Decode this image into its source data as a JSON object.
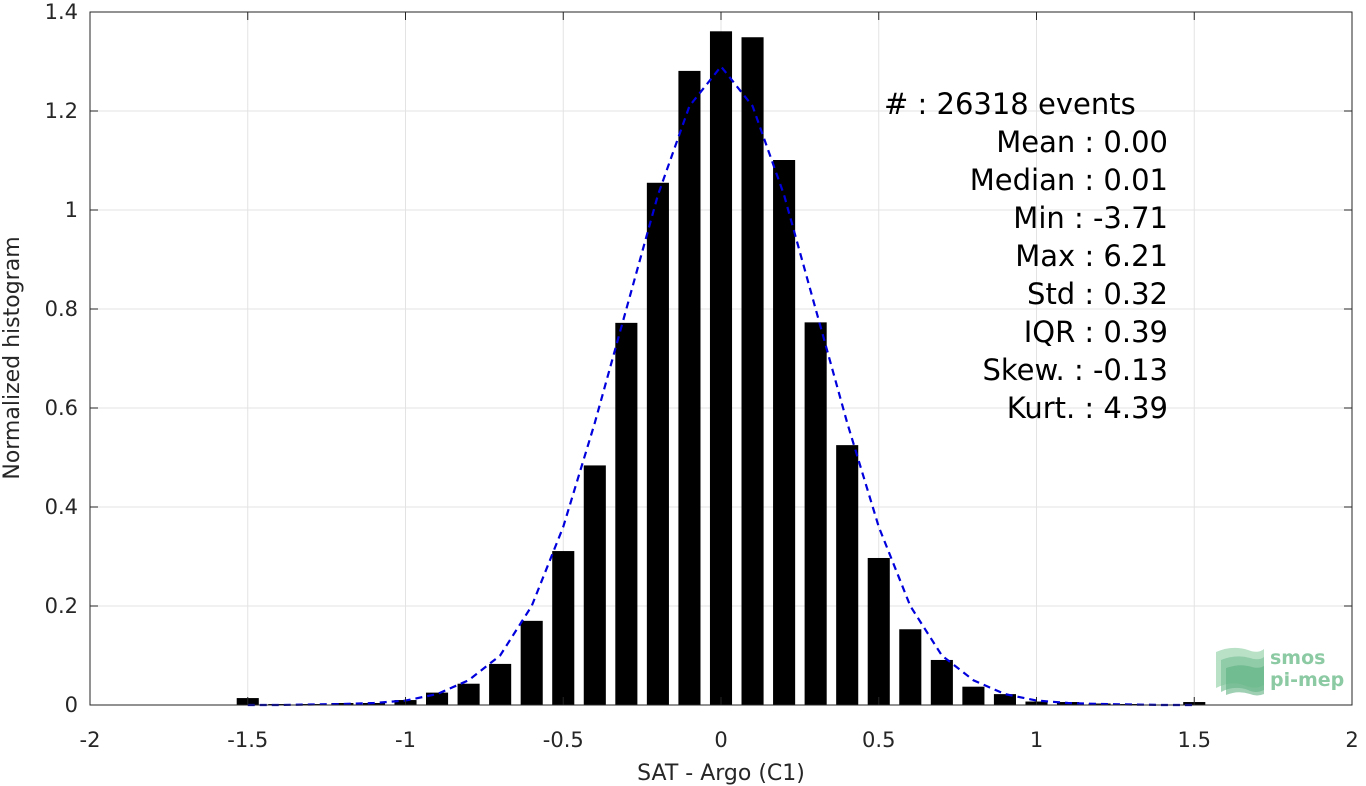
{
  "chart_data": {
    "type": "bar",
    "xlabel": "SAT - Argo (C1)",
    "ylabel": "Normalized histogram",
    "xlim": [
      -2,
      2
    ],
    "ylim": [
      0,
      1.4
    ],
    "xticks": [
      -2,
      -1.5,
      -1,
      -0.5,
      0,
      0.5,
      1,
      1.5,
      2
    ],
    "xtick_labels": [
      "-2",
      "-1.5",
      "-1",
      "-0.5",
      "0",
      "0.5",
      "1",
      "1.5",
      "2"
    ],
    "yticks": [
      0,
      0.2,
      0.4,
      0.6,
      0.8,
      1,
      1.2,
      1.4
    ],
    "ytick_labels": [
      "0",
      "0.2",
      "0.4",
      "0.6",
      "0.8",
      "1",
      "1.2",
      "1.4"
    ],
    "grid": true,
    "bar_width": 0.07,
    "series": [
      {
        "type": "bar",
        "color": "#000000",
        "x": [
          -1.5,
          -1.4,
          -1.3,
          -1.2,
          -1.1,
          -1.0,
          -0.9,
          -0.8,
          -0.7,
          -0.6,
          -0.5,
          -0.4,
          -0.3,
          -0.2,
          -0.1,
          0.0,
          0.1,
          0.2,
          0.3,
          0.4,
          0.5,
          0.6,
          0.7,
          0.8,
          0.9,
          1.0,
          1.1,
          1.2,
          1.3,
          1.4,
          1.5
        ],
        "values": [
          0.014,
          0.002,
          0.002,
          0.004,
          0.004,
          0.01,
          0.025,
          0.043,
          0.083,
          0.17,
          0.311,
          0.484,
          0.772,
          1.055,
          1.281,
          1.361,
          1.349,
          1.101,
          0.773,
          0.525,
          0.297,
          0.153,
          0.091,
          0.037,
          0.022,
          0.007,
          0.006,
          0.003,
          0.002,
          0.001,
          0.006
        ]
      },
      {
        "type": "line",
        "style": "dashed",
        "color": "#0000dd",
        "x": [
          -1.5,
          -1.4,
          -1.3,
          -1.2,
          -1.1,
          -1.0,
          -0.9,
          -0.8,
          -0.7,
          -0.6,
          -0.5,
          -0.4,
          -0.3,
          -0.2,
          -0.1,
          0.0,
          0.1,
          0.2,
          0.3,
          0.4,
          0.5,
          0.6,
          0.7,
          0.8,
          0.9,
          1.0,
          1.1,
          1.2,
          1.3,
          1.4,
          1.5
        ],
        "values": [
          0.0,
          0.0,
          0.001,
          0.002,
          0.004,
          0.009,
          0.022,
          0.05,
          0.1,
          0.2,
          0.36,
          0.57,
          0.8,
          1.03,
          1.21,
          1.29,
          1.21,
          1.03,
          0.8,
          0.57,
          0.36,
          0.2,
          0.1,
          0.05,
          0.022,
          0.009,
          0.004,
          0.002,
          0.001,
          0.0,
          0.0
        ]
      }
    ]
  },
  "stats": [
    {
      "label": "#  : 26318 events",
      "align": "left"
    },
    {
      "label": "Mean : 0.00",
      "align": "right"
    },
    {
      "label": "Median : 0.01",
      "align": "right"
    },
    {
      "label": "Min : -3.71",
      "align": "right"
    },
    {
      "label": "Max : 6.21",
      "align": "right"
    },
    {
      "label": "Std : 0.32",
      "align": "right"
    },
    {
      "label": "IQR : 0.39",
      "align": "right"
    },
    {
      "label": "Skew. : -0.13",
      "align": "right"
    },
    {
      "label": "Kurt. : 4.39",
      "align": "right"
    }
  ],
  "logo": {
    "line1": "smos",
    "line2": "pi-mep",
    "color": "#8ccaa3"
  }
}
